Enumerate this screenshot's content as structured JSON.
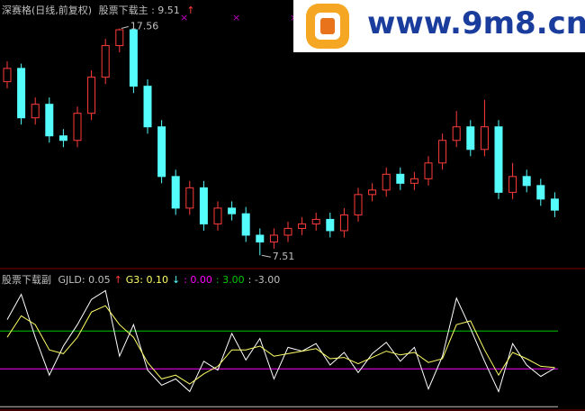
{
  "chart_data": [
    {
      "type": "candlestick",
      "title": "深赛格(日线,前复权)",
      "indicator_label": "股票下载主 : 9.51",
      "arrow": "↑",
      "up_color": "#ff3c3c",
      "down_color": "#54fcfc",
      "open": [
        15.2,
        15.79,
        13.6,
        14.2,
        12.8,
        12.6,
        13.8,
        15.4,
        16.8,
        17.5,
        15.0,
        13.2,
        11.0,
        9.6,
        10.5,
        8.9,
        9.6,
        9.35,
        8.4,
        8.1,
        8.4,
        8.7,
        8.9,
        9.1,
        8.6,
        9.3,
        10.2,
        10.4,
        11.1,
        10.7,
        10.9,
        11.6,
        12.6,
        13.2,
        12.2,
        13.2,
        10.3,
        11.0,
        10.6,
        10.0
      ],
      "high": [
        16.1,
        16.0,
        14.5,
        14.5,
        13.1,
        14.1,
        15.7,
        17.1,
        17.56,
        17.5,
        15.3,
        13.5,
        11.3,
        10.8,
        10.8,
        9.9,
        9.9,
        9.65,
        8.7,
        8.7,
        9.0,
        9.2,
        9.4,
        9.4,
        9.6,
        10.5,
        10.7,
        11.4,
        11.4,
        11.2,
        11.9,
        12.9,
        13.9,
        13.5,
        14.4,
        13.5,
        11.6,
        11.3,
        10.9,
        10.3
      ],
      "low": [
        14.9,
        13.3,
        13.3,
        12.5,
        12.3,
        12.3,
        13.5,
        15.1,
        16.5,
        14.7,
        12.9,
        10.7,
        9.3,
        9.3,
        8.6,
        8.6,
        9.05,
        8.1,
        7.51,
        7.8,
        8.1,
        8.4,
        8.6,
        8.3,
        8.3,
        9.0,
        9.9,
        10.1,
        10.4,
        10.4,
        10.6,
        11.3,
        12.3,
        11.9,
        11.9,
        10.0,
        10.0,
        10.3,
        9.7,
        9.2
      ],
      "close": [
        15.79,
        13.6,
        14.2,
        12.8,
        12.6,
        13.8,
        15.4,
        16.8,
        17.5,
        15.0,
        13.2,
        11.0,
        9.6,
        10.5,
        8.9,
        9.6,
        9.35,
        8.4,
        8.1,
        8.4,
        8.7,
        8.9,
        9.1,
        8.6,
        9.3,
        10.2,
        10.4,
        11.1,
        10.7,
        10.9,
        11.6,
        12.6,
        13.2,
        12.2,
        13.2,
        10.3,
        11.0,
        10.6,
        10.0,
        9.51
      ],
      "ylim": [
        7.0,
        18.5
      ]
    },
    {
      "type": "line",
      "title": "股票下载副",
      "series": [
        {
          "name": "GJLD",
          "legend_label": "GJLD: 0.05",
          "arrow": "↑",
          "arrow_color": "#ff3c3c",
          "color": "#ffffff",
          "values": [
            3.9,
            5.9,
            2.5,
            -0.5,
            1.8,
            3.5,
            5.5,
            6.2,
            1.0,
            3.5,
            -0.1,
            -1.3,
            -0.8,
            -1.8,
            0.6,
            -0.1,
            2.8,
            0.7,
            2.4,
            -0.8,
            1.7,
            1.4,
            2.0,
            0.3,
            1.3,
            -0.3,
            1.2,
            2.1,
            0.6,
            1.7,
            -1.6,
            1.0,
            5.6,
            3.2,
            0.6,
            -1.8,
            2.0,
            0.3,
            -0.6,
            0.05
          ]
        },
        {
          "name": "G3",
          "legend_label": "G3: 0.10",
          "arrow": "↓",
          "arrow_color": "#54fcfc",
          "color": "#ffff66",
          "values": [
            2.5,
            4.2,
            3.5,
            1.5,
            1.2,
            2.5,
            4.5,
            5.0,
            3.5,
            2.5,
            0.5,
            -0.8,
            -0.5,
            -1.2,
            -0.4,
            0.2,
            1.5,
            1.5,
            1.8,
            1.0,
            1.2,
            1.4,
            1.6,
            0.8,
            0.9,
            0.4,
            0.9,
            1.4,
            1.1,
            1.3,
            0.5,
            0.8,
            3.5,
            3.8,
            1.5,
            -0.5,
            1.3,
            0.8,
            0.2,
            0.1
          ]
        }
      ],
      "reference_lines": [
        {
          "value": 0.0,
          "label": ": 0.00",
          "color": "#ff00ff"
        },
        {
          "value": 3.0,
          "label": ": 3.00",
          "color": "#00c800"
        },
        {
          "value": -3.0,
          "label": ": -3.00",
          "color": "#c0c0c0"
        }
      ],
      "ylim": [
        -3.2,
        7.8
      ]
    }
  ],
  "watermark": "www.9m8.cn"
}
